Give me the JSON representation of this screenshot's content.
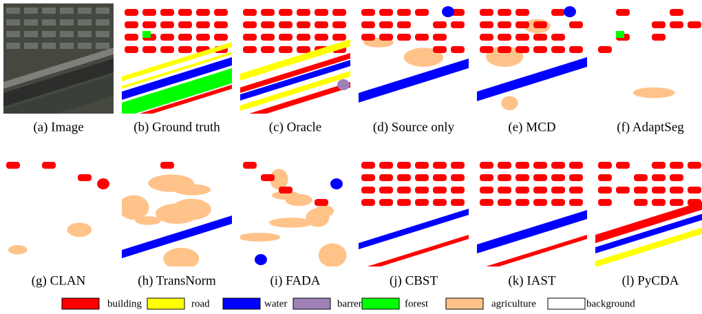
{
  "panels": [
    {
      "caption": "(a) Image"
    },
    {
      "caption": "(b) Ground truth"
    },
    {
      "caption": "(c) Oracle"
    },
    {
      "caption": "(d) Source only"
    },
    {
      "caption": "(e) MCD"
    },
    {
      "caption": "(f) AdaptSeg"
    },
    {
      "caption": "(g) CLAN"
    },
    {
      "caption": "(h) TransNorm"
    },
    {
      "caption": "(i) FADA"
    },
    {
      "caption": "(j) CBST"
    },
    {
      "caption": "(k) IAST"
    },
    {
      "caption": "(l) PyCDA"
    }
  ],
  "legend": [
    {
      "label": "building",
      "color": "#ff0000"
    },
    {
      "label": "road",
      "color": "#ffff00"
    },
    {
      "label": "water",
      "color": "#0000ff"
    },
    {
      "label": "barren",
      "color": "#9f81b7"
    },
    {
      "label": "forest",
      "color": "#00ff00"
    },
    {
      "label": "agriculture",
      "color": "#ffc38a"
    },
    {
      "label": "background",
      "color": "#ffffff"
    }
  ]
}
